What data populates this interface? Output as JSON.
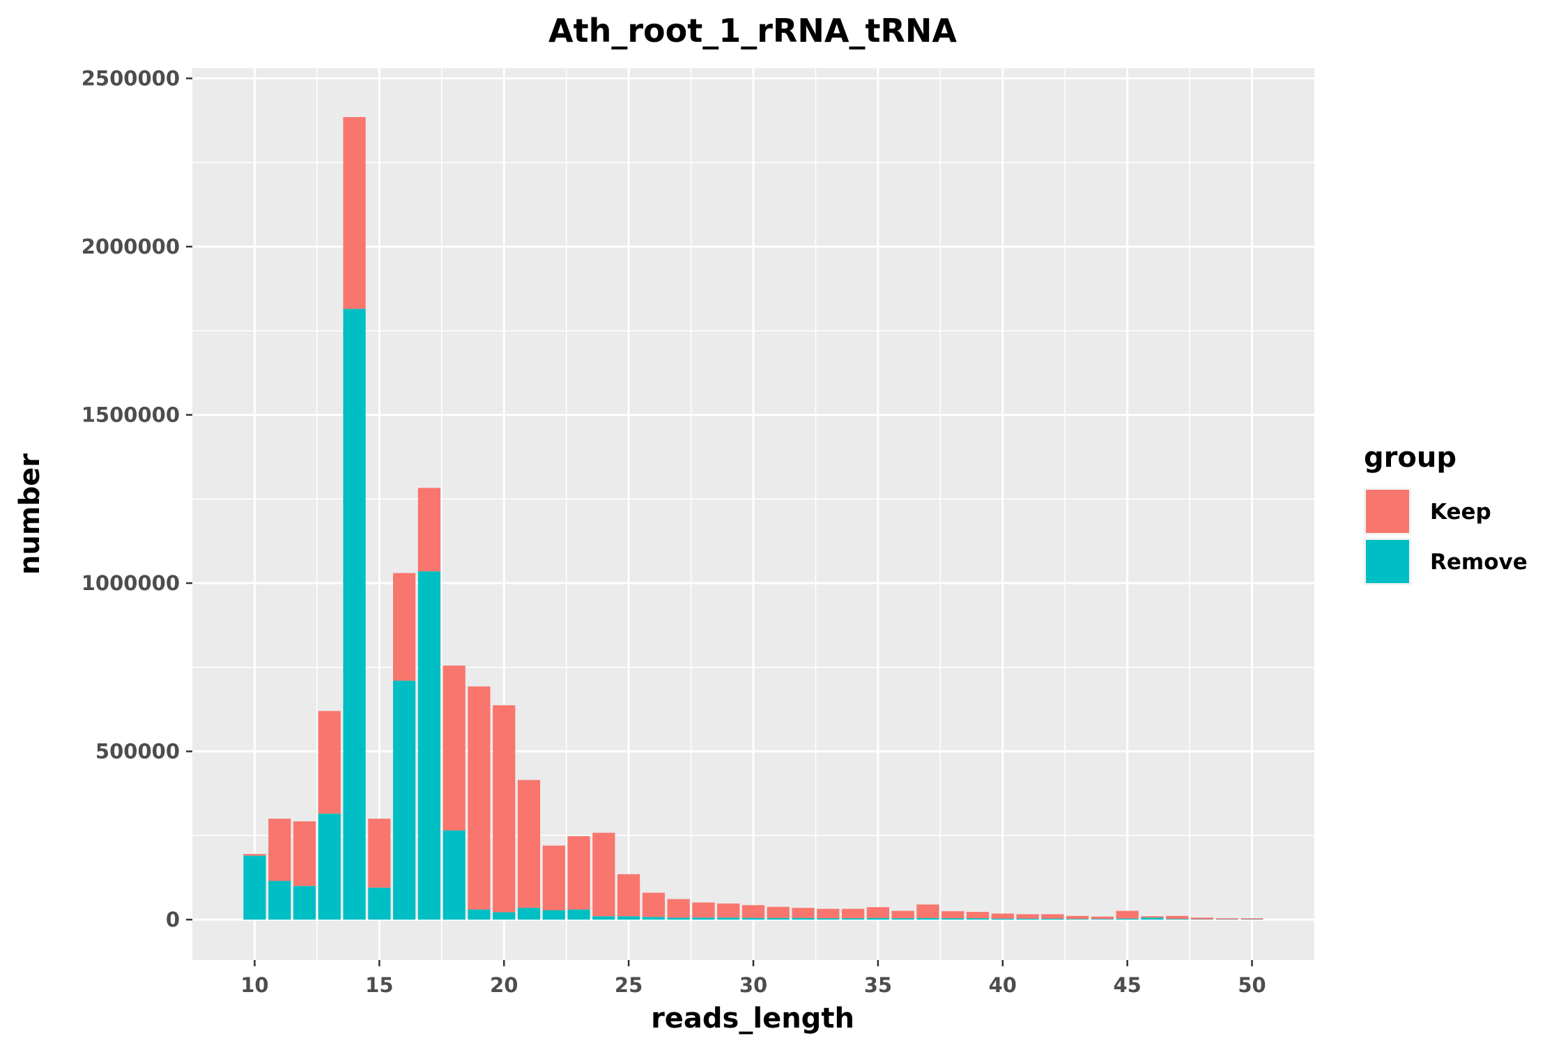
{
  "chart_data": {
    "type": "bar",
    "stacked": true,
    "title": "Ath_root_1_rRNA_tRNA",
    "xlabel": "reads_length",
    "ylabel": "number",
    "xlim": [
      7.5,
      52.5
    ],
    "ylim": [
      -120000,
      2530000
    ],
    "x_ticks": [
      "10",
      "15",
      "20",
      "25",
      "30",
      "35",
      "40",
      "45",
      "50"
    ],
    "y_ticks": [
      "0",
      "500000",
      "1000000",
      "1500000",
      "2000000",
      "2500000"
    ],
    "x_tick_values": [
      10,
      15,
      20,
      25,
      30,
      35,
      40,
      45,
      50
    ],
    "y_tick_values": [
      0,
      500000,
      1000000,
      1500000,
      2000000,
      2500000
    ],
    "grid": true,
    "legend_position": "right",
    "legend_title": "group",
    "x": [
      10,
      11,
      12,
      13,
      14,
      15,
      16,
      17,
      18,
      19,
      20,
      21,
      22,
      23,
      24,
      25,
      26,
      27,
      28,
      29,
      30,
      31,
      32,
      33,
      34,
      35,
      36,
      37,
      38,
      39,
      40,
      41,
      42,
      43,
      44,
      45,
      46,
      47,
      48,
      49,
      50
    ],
    "series": [
      {
        "name": "Remove",
        "color": "#00BFC4",
        "values": [
          190000,
          115000,
          100000,
          315000,
          1815000,
          95000,
          710000,
          1035000,
          265000,
          30000,
          22000,
          35000,
          28000,
          30000,
          10000,
          10000,
          8000,
          6000,
          6000,
          6000,
          5000,
          5000,
          5000,
          4000,
          4000,
          5000,
          4000,
          5000,
          4000,
          4000,
          3000,
          3000,
          3000,
          2000,
          2000,
          3000,
          6000,
          2000,
          1000,
          1000,
          1000
        ]
      },
      {
        "name": "Keep",
        "color": "#F8766D",
        "values": [
          5000,
          185000,
          192000,
          305000,
          570000,
          205000,
          320000,
          248000,
          490000,
          663000,
          615000,
          380000,
          192000,
          218000,
          248000,
          125000,
          72000,
          55000,
          45000,
          42000,
          38000,
          33000,
          30000,
          28000,
          28000,
          32000,
          22000,
          40000,
          21000,
          19000,
          15000,
          13000,
          13000,
          9000,
          7000,
          23000,
          4000,
          9000,
          5000,
          3000,
          3000
        ]
      }
    ]
  }
}
